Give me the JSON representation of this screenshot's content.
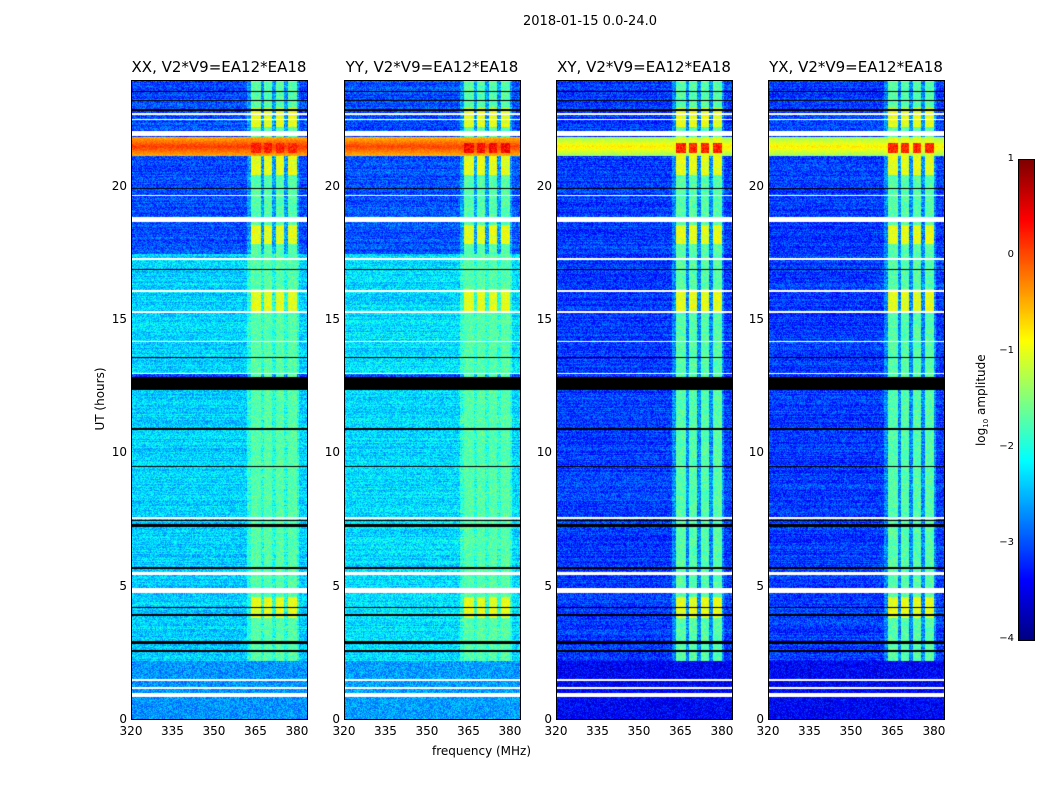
{
  "chart_data": {
    "type": "heatmap",
    "title": "2018-01-15 0.0-24.0",
    "xlabel": "frequency (MHz)",
    "ylabel": "UT (hours)",
    "xlim": [
      320,
      384
    ],
    "ylim": [
      0,
      24
    ],
    "xticks": [
      "320",
      "335",
      "350",
      "365",
      "380"
    ],
    "xtick_values": [
      320,
      335,
      350,
      365,
      380
    ],
    "yticks": [
      "0",
      "5",
      "10",
      "15",
      "20"
    ],
    "ytick_values": [
      0,
      5,
      10,
      15,
      20
    ],
    "colormap": "jet",
    "colorbar": {
      "label": "log10 amplitude",
      "label_base": "log",
      "label_sub": "10",
      "label_rest": " amplitude",
      "range": [
        -4,
        1
      ],
      "ticks": [
        "1",
        "0",
        "−1",
        "−2",
        "−3",
        "−4"
      ],
      "tick_values": [
        1,
        0,
        -1,
        -2,
        -3,
        -4
      ]
    },
    "panels": [
      {
        "title": "XX, V2*V9=EA12*EA18",
        "pol": "XX",
        "low_base": -2.35,
        "high_base": -3.0,
        "band_level": 0.1,
        "rfi_hot": 0.2
      },
      {
        "title": "YY, V2*V9=EA12*EA18",
        "pol": "YY",
        "low_base": -2.3,
        "high_base": -3.0,
        "band_level": 0.05,
        "rfi_hot": 0.35
      },
      {
        "title": "XY, V2*V9=EA12*EA18",
        "pol": "XY",
        "low_base": -3.1,
        "high_base": -3.1,
        "band_level": -0.8,
        "rfi_hot": 0.2
      },
      {
        "title": "YX, V2*V9=EA12*EA18",
        "pol": "YX",
        "low_base": -3.1,
        "high_base": -3.1,
        "band_level": -0.8,
        "rfi_hot": 0.2
      }
    ],
    "rfi_channels_mhz": [
      [
        363.5,
        367
      ],
      [
        368,
        371
      ],
      [
        372.5,
        375.5
      ],
      [
        377,
        380
      ]
    ],
    "flagged_white_hours": [
      [
        0.85,
        0.98
      ],
      [
        1.15,
        1.22
      ],
      [
        1.45,
        1.52
      ],
      [
        4.75,
        4.95
      ],
      [
        5.45,
        5.55
      ],
      [
        7.55,
        7.6
      ],
      [
        13.0,
        13.05
      ],
      [
        14.2,
        14.25
      ],
      [
        15.3,
        15.35
      ],
      [
        16.1,
        16.15
      ],
      [
        17.3,
        17.35
      ],
      [
        18.7,
        18.92
      ],
      [
        19.7,
        19.72
      ],
      [
        21.95,
        22.15
      ],
      [
        22.55,
        22.6
      ],
      [
        22.75,
        22.8
      ]
    ],
    "gap_black_hours": [
      [
        2.55,
        2.62
      ],
      [
        2.85,
        2.95
      ],
      [
        3.9,
        3.95
      ],
      [
        4.2,
        4.25
      ],
      [
        5.65,
        5.72
      ],
      [
        7.25,
        7.35
      ],
      [
        7.45,
        7.52
      ],
      [
        9.5,
        9.55
      ],
      [
        10.9,
        10.95
      ],
      [
        12.4,
        12.9
      ],
      [
        13.6,
        13.63
      ],
      [
        16.9,
        16.95
      ],
      [
        19.95,
        20.0
      ],
      [
        22.9,
        22.95
      ],
      [
        23.25,
        23.3
      ],
      [
        23.6,
        23.65
      ]
    ],
    "bright_band_hours": [
      21.2,
      21.9
    ]
  }
}
